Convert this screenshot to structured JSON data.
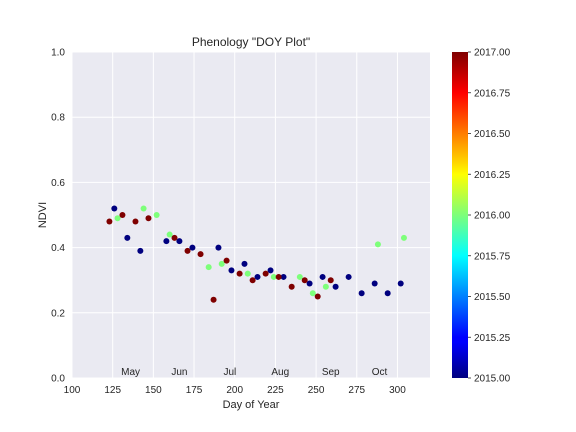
{
  "chart_data": {
    "type": "scatter",
    "title": "Phenology \"DOY Plot\"",
    "xlabel": "Day of Year",
    "ylabel": "NDVI",
    "xlim": [
      100,
      320
    ],
    "ylim": [
      0.0,
      1.0
    ],
    "x_ticks": [
      100,
      125,
      150,
      175,
      200,
      225,
      250,
      275,
      300
    ],
    "y_ticks": [
      0.0,
      0.2,
      0.4,
      0.6,
      0.8,
      1.0
    ],
    "x_tick_labels": [
      "100",
      "125",
      "150",
      "175",
      "200",
      "225",
      "250",
      "275",
      "300"
    ],
    "y_tick_labels": [
      "0.0",
      "0.2",
      "0.4",
      "0.6",
      "0.8",
      "1.0"
    ],
    "month_labels": [
      {
        "label": "May",
        "x": 136
      },
      {
        "label": "Jun",
        "x": 166
      },
      {
        "label": "Jul",
        "x": 197
      },
      {
        "label": "Aug",
        "x": 228
      },
      {
        "label": "Sep",
        "x": 259
      },
      {
        "label": "Oct",
        "x": 289
      }
    ],
    "colorbar": {
      "colormap": "jet",
      "range": [
        2015.0,
        2017.0
      ],
      "ticks": [
        2015.0,
        2015.25,
        2015.5,
        2015.75,
        2016.0,
        2016.25,
        2016.5,
        2016.75,
        2017.0
      ],
      "tick_labels": [
        "2015.00",
        "2015.25",
        "2015.50",
        "2015.75",
        "2016.00",
        "2016.25",
        "2016.50",
        "2016.75",
        "2017.00"
      ]
    },
    "grid": true,
    "series": [
      {
        "year": 2015,
        "color": "#00007f",
        "points": [
          {
            "x": 126,
            "y": 0.52
          },
          {
            "x": 134,
            "y": 0.43
          },
          {
            "x": 142,
            "y": 0.39
          },
          {
            "x": 158,
            "y": 0.42
          },
          {
            "x": 166,
            "y": 0.42
          },
          {
            "x": 174,
            "y": 0.4
          },
          {
            "x": 190,
            "y": 0.4
          },
          {
            "x": 198,
            "y": 0.33
          },
          {
            "x": 206,
            "y": 0.35
          },
          {
            "x": 214,
            "y": 0.31
          },
          {
            "x": 222,
            "y": 0.33
          },
          {
            "x": 230,
            "y": 0.31
          },
          {
            "x": 246,
            "y": 0.29
          },
          {
            "x": 254,
            "y": 0.31
          },
          {
            "x": 262,
            "y": 0.28
          },
          {
            "x": 270,
            "y": 0.31
          },
          {
            "x": 278,
            "y": 0.26
          },
          {
            "x": 286,
            "y": 0.29
          },
          {
            "x": 294,
            "y": 0.26
          },
          {
            "x": 302,
            "y": 0.29
          }
        ]
      },
      {
        "year": 2016,
        "color": "#7dff7a",
        "points": [
          {
            "x": 128,
            "y": 0.49
          },
          {
            "x": 144,
            "y": 0.52
          },
          {
            "x": 152,
            "y": 0.5
          },
          {
            "x": 160,
            "y": 0.44
          },
          {
            "x": 184,
            "y": 0.34
          },
          {
            "x": 192,
            "y": 0.35
          },
          {
            "x": 208,
            "y": 0.32
          },
          {
            "x": 224,
            "y": 0.31
          },
          {
            "x": 240,
            "y": 0.31
          },
          {
            "x": 248,
            "y": 0.26
          },
          {
            "x": 256,
            "y": 0.28
          },
          {
            "x": 288,
            "y": 0.41
          },
          {
            "x": 304,
            "y": 0.43
          }
        ]
      },
      {
        "year": 2017,
        "color": "#7f0000",
        "points": [
          {
            "x": 123,
            "y": 0.48
          },
          {
            "x": 131,
            "y": 0.5
          },
          {
            "x": 139,
            "y": 0.48
          },
          {
            "x": 147,
            "y": 0.49
          },
          {
            "x": 163,
            "y": 0.43
          },
          {
            "x": 171,
            "y": 0.39
          },
          {
            "x": 179,
            "y": 0.38
          },
          {
            "x": 187,
            "y": 0.24
          },
          {
            "x": 195,
            "y": 0.36
          },
          {
            "x": 203,
            "y": 0.32
          },
          {
            "x": 211,
            "y": 0.3
          },
          {
            "x": 219,
            "y": 0.32
          },
          {
            "x": 227,
            "y": 0.31
          },
          {
            "x": 235,
            "y": 0.28
          },
          {
            "x": 243,
            "y": 0.3
          },
          {
            "x": 251,
            "y": 0.25
          },
          {
            "x": 259,
            "y": 0.3
          }
        ]
      }
    ]
  }
}
